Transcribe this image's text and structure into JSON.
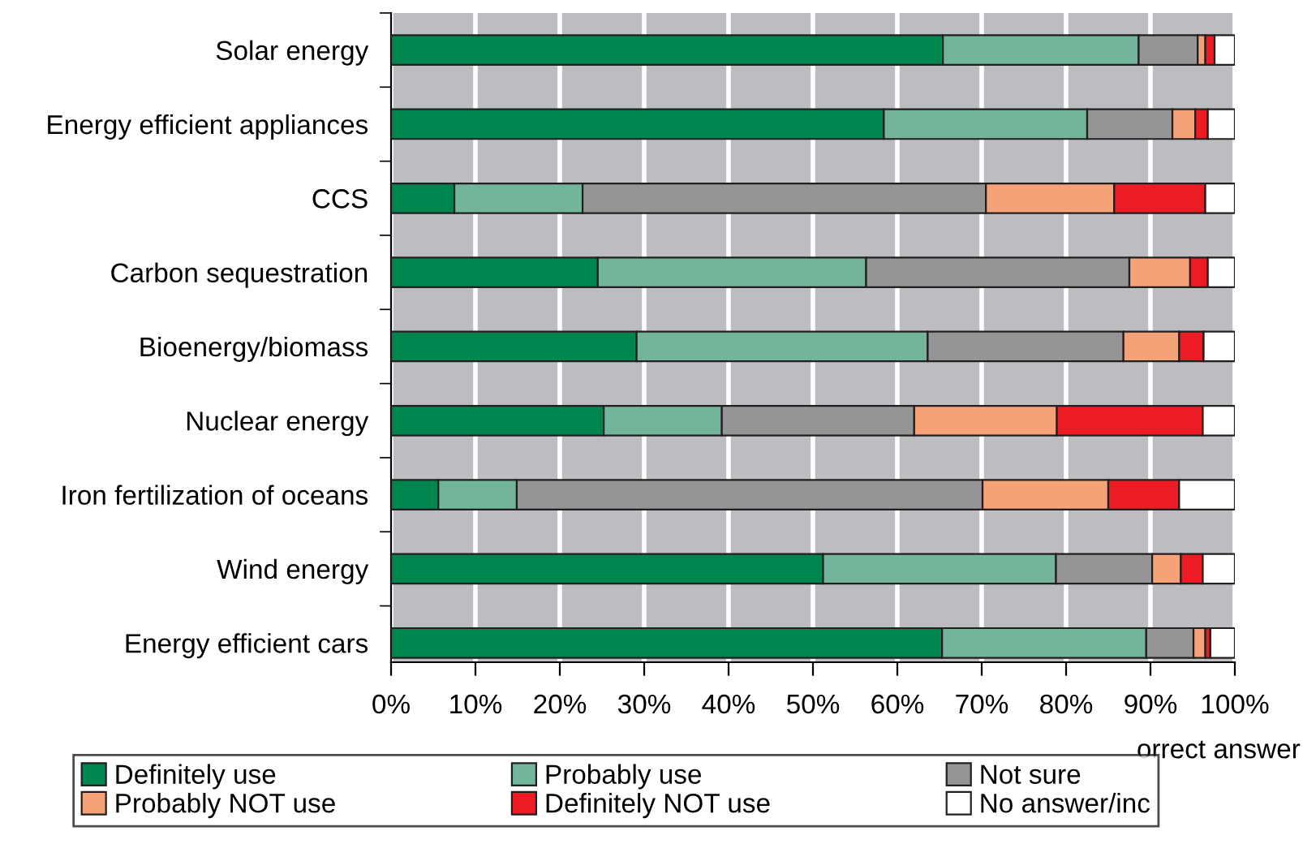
{
  "chart_data": {
    "type": "bar",
    "orientation": "horizontal",
    "stacked": true,
    "categories": [
      "Solar energy",
      "Energy efficient appliances",
      "CCS",
      "Carbon sequestration",
      "Bioenergy/biomass",
      "Nuclear energy",
      "Iron fertilization of oceans",
      "Wind energy",
      "Energy efficient cars"
    ],
    "series": [
      {
        "name": "Definitely use",
        "color": "#00854f",
        "values": [
          65.4,
          58.4,
          7.5,
          24.5,
          29.1,
          25.2,
          5.6,
          51.2,
          65.3
        ]
      },
      {
        "name": "Probably use",
        "color": "#72b59a",
        "values": [
          23.2,
          24.1,
          15.2,
          31.8,
          34.5,
          14.0,
          9.3,
          27.6,
          24.2
        ]
      },
      {
        "name": "Not sure",
        "color": "#959598",
        "values": [
          7.0,
          10.1,
          47.8,
          31.2,
          23.2,
          22.8,
          55.2,
          11.4,
          5.6
        ]
      },
      {
        "name": "Probably NOT use",
        "color": "#f5a279",
        "values": [
          0.9,
          2.7,
          15.2,
          7.2,
          6.6,
          16.9,
          14.9,
          3.4,
          1.4
        ]
      },
      {
        "name": "Definitely NOT use",
        "color": "#ed1c24",
        "values": [
          1.1,
          1.5,
          10.8,
          2.1,
          2.9,
          17.3,
          8.4,
          2.6,
          0.6
        ]
      },
      {
        "name": "No answer/inc",
        "color": "#ffffff",
        "values": [
          2.4,
          3.2,
          3.5,
          3.2,
          3.7,
          3.8,
          6.6,
          3.8,
          2.9
        ]
      }
    ],
    "xlim": [
      0,
      100
    ],
    "xticks": [
      {
        "value": 0,
        "label": "0%"
      },
      {
        "value": 10,
        "label": "10%"
      },
      {
        "value": 20,
        "label": "20%"
      },
      {
        "value": 30,
        "label": "30%"
      },
      {
        "value": 40,
        "label": "40%"
      },
      {
        "value": 50,
        "label": "50%"
      },
      {
        "value": 60,
        "label": "60%"
      },
      {
        "value": 70,
        "label": "70%"
      },
      {
        "value": 80,
        "label": "80%"
      },
      {
        "value": 90,
        "label": "90%"
      },
      {
        "value": 100,
        "label": "100%"
      }
    ],
    "grid": "x",
    "legend": "bottom",
    "annotations": [
      "orrect answer"
    ]
  }
}
